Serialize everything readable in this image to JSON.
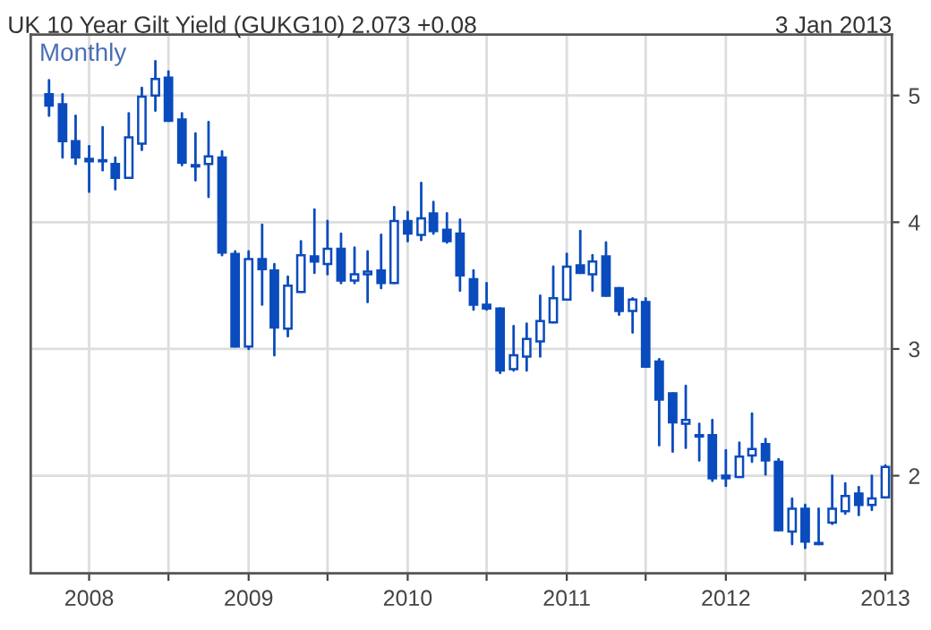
{
  "chart_data": {
    "type": "candlestick",
    "title": "UK 10 Year Gilt Yield (GUKG10) 2.073 +0.08",
    "subtitle": "3 Jan 2013",
    "annotations": [
      "Monthly"
    ],
    "color": "#0a4bbd",
    "x": [
      "2007-10",
      "2007-11",
      "2007-12",
      "2008-01",
      "2008-02",
      "2008-03",
      "2008-04",
      "2008-05",
      "2008-06",
      "2008-07",
      "2008-08",
      "2008-09",
      "2008-10",
      "2008-11",
      "2008-12",
      "2009-01",
      "2009-02",
      "2009-03",
      "2009-04",
      "2009-05",
      "2009-06",
      "2009-07",
      "2009-08",
      "2009-09",
      "2009-10",
      "2009-11",
      "2009-12",
      "2010-01",
      "2010-02",
      "2010-03",
      "2010-04",
      "2010-05",
      "2010-06",
      "2010-07",
      "2010-08",
      "2010-09",
      "2010-10",
      "2010-11",
      "2010-12",
      "2011-01",
      "2011-02",
      "2011-03",
      "2011-04",
      "2011-05",
      "2011-06",
      "2011-07",
      "2011-08",
      "2011-09",
      "2011-10",
      "2011-11",
      "2011-12",
      "2012-01",
      "2012-02",
      "2012-03",
      "2012-04",
      "2012-05",
      "2012-06",
      "2012-07",
      "2012-08",
      "2012-09",
      "2012-10",
      "2012-11",
      "2012-12",
      "2013-01"
    ],
    "ohlc": [
      [
        5.01,
        5.12,
        4.84,
        4.92
      ],
      [
        4.93,
        5.01,
        4.51,
        4.64
      ],
      [
        4.64,
        4.84,
        4.46,
        4.51
      ],
      [
        4.5,
        4.6,
        4.24,
        4.48
      ],
      [
        4.49,
        4.75,
        4.41,
        4.48
      ],
      [
        4.46,
        4.51,
        4.26,
        4.35
      ],
      [
        4.35,
        4.86,
        4.35,
        4.67
      ],
      [
        4.62,
        5.06,
        4.57,
        4.99
      ],
      [
        5.0,
        5.27,
        4.88,
        5.13
      ],
      [
        5.14,
        5.19,
        4.8,
        4.8
      ],
      [
        4.81,
        4.86,
        4.45,
        4.47
      ],
      [
        4.45,
        4.7,
        4.33,
        4.44
      ],
      [
        4.46,
        4.79,
        4.2,
        4.52
      ],
      [
        4.51,
        4.56,
        3.74,
        3.76
      ],
      [
        3.75,
        3.77,
        3.02,
        3.02
      ],
      [
        3.02,
        3.77,
        3.0,
        3.71
      ],
      [
        3.71,
        3.98,
        3.35,
        3.63
      ],
      [
        3.62,
        3.67,
        2.95,
        3.17
      ],
      [
        3.16,
        3.57,
        3.1,
        3.5
      ],
      [
        3.45,
        3.85,
        3.45,
        3.74
      ],
      [
        3.73,
        4.1,
        3.6,
        3.69
      ],
      [
        3.67,
        4.01,
        3.59,
        3.79
      ],
      [
        3.79,
        3.91,
        3.52,
        3.54
      ],
      [
        3.54,
        3.8,
        3.52,
        3.59
      ],
      [
        3.59,
        3.77,
        3.37,
        3.61
      ],
      [
        3.62,
        3.9,
        3.48,
        3.52
      ],
      [
        3.52,
        4.12,
        3.52,
        4.01
      ],
      [
        4.01,
        4.08,
        3.85,
        3.91
      ],
      [
        3.9,
        4.31,
        3.86,
        4.03
      ],
      [
        4.07,
        4.16,
        3.91,
        3.93
      ],
      [
        3.94,
        4.07,
        3.84,
        3.85
      ],
      [
        3.91,
        4.02,
        3.46,
        3.58
      ],
      [
        3.55,
        3.62,
        3.31,
        3.35
      ],
      [
        3.35,
        3.52,
        3.31,
        3.32
      ],
      [
        3.32,
        3.32,
        2.81,
        2.83
      ],
      [
        2.84,
        3.18,
        2.83,
        2.95
      ],
      [
        2.94,
        3.2,
        2.83,
        3.08
      ],
      [
        3.06,
        3.42,
        2.94,
        3.22
      ],
      [
        3.21,
        3.65,
        3.21,
        3.4
      ],
      [
        3.39,
        3.75,
        3.39,
        3.65
      ],
      [
        3.66,
        3.93,
        3.6,
        3.6
      ],
      [
        3.59,
        3.74,
        3.46,
        3.69
      ],
      [
        3.73,
        3.84,
        3.42,
        3.42
      ],
      [
        3.48,
        3.48,
        3.27,
        3.3
      ],
      [
        3.3,
        3.4,
        3.13,
        3.39
      ],
      [
        3.37,
        3.4,
        2.86,
        2.86
      ],
      [
        2.9,
        2.92,
        2.24,
        2.6
      ],
      [
        2.65,
        2.65,
        2.19,
        2.42
      ],
      [
        2.41,
        2.71,
        2.22,
        2.44
      ],
      [
        2.32,
        2.41,
        2.12,
        2.31
      ],
      [
        2.32,
        2.44,
        1.96,
        1.98
      ],
      [
        2.0,
        2.2,
        1.92,
        1.98
      ],
      [
        1.99,
        2.26,
        1.99,
        2.15
      ],
      [
        2.16,
        2.49,
        2.11,
        2.21
      ],
      [
        2.25,
        2.29,
        2.01,
        2.12
      ],
      [
        2.11,
        2.13,
        1.57,
        1.57
      ],
      [
        1.56,
        1.82,
        1.46,
        1.74
      ],
      [
        1.74,
        1.77,
        1.43,
        1.48
      ],
      [
        1.47,
        1.74,
        1.46,
        1.46
      ],
      [
        1.63,
        2.0,
        1.62,
        1.74
      ],
      [
        1.72,
        1.94,
        1.7,
        1.84
      ],
      [
        1.86,
        1.91,
        1.69,
        1.77
      ],
      [
        1.77,
        2.0,
        1.73,
        1.82
      ],
      [
        1.83,
        2.08,
        1.83,
        2.07
      ]
    ],
    "xlim": [
      "2007-08-20",
      "2013-01-16"
    ],
    "xticks": [
      {
        "value": "2008-01",
        "label": "2008"
      },
      {
        "value": "2008-07",
        "label": null
      },
      {
        "value": "2009-01",
        "label": "2009"
      },
      {
        "value": "2009-07",
        "label": null
      },
      {
        "value": "2010-01",
        "label": "2010"
      },
      {
        "value": "2010-07",
        "label": null
      },
      {
        "value": "2011-01",
        "label": "2011"
      },
      {
        "value": "2011-07",
        "label": null
      },
      {
        "value": "2012-01",
        "label": "2012"
      },
      {
        "value": "2012-07",
        "label": null
      },
      {
        "value": "2013-01",
        "label": "2013"
      }
    ],
    "ylim": [
      1.23,
      5.48
    ],
    "yticks": [
      2,
      3,
      4,
      5
    ],
    "grid": true
  }
}
